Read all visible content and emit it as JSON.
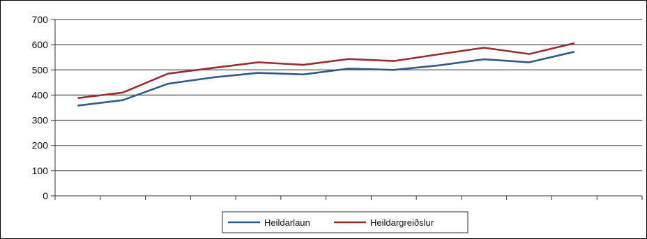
{
  "chart_data": {
    "type": "line",
    "title": "",
    "xlabel": "",
    "ylabel": "",
    "ylim": [
      0,
      700
    ],
    "yticks": [
      0,
      100,
      200,
      300,
      400,
      500,
      600,
      700
    ],
    "grid": true,
    "legend_position": "bottom",
    "x": [
      1,
      2,
      3,
      4,
      5,
      6,
      7,
      8,
      9,
      10,
      11,
      12,
      13
    ],
    "series": [
      {
        "name": "Heildarlaun",
        "color": "#2e5b8a",
        "values": [
          358,
          380,
          445,
          470,
          488,
          482,
          505,
          500,
          518,
          542,
          530,
          572,
          null
        ]
      },
      {
        "name": "Heildargreiðslur",
        "color": "#9b2d30",
        "values": [
          388,
          410,
          485,
          508,
          530,
          520,
          543,
          535,
          562,
          588,
          563,
          606,
          null
        ]
      }
    ]
  }
}
